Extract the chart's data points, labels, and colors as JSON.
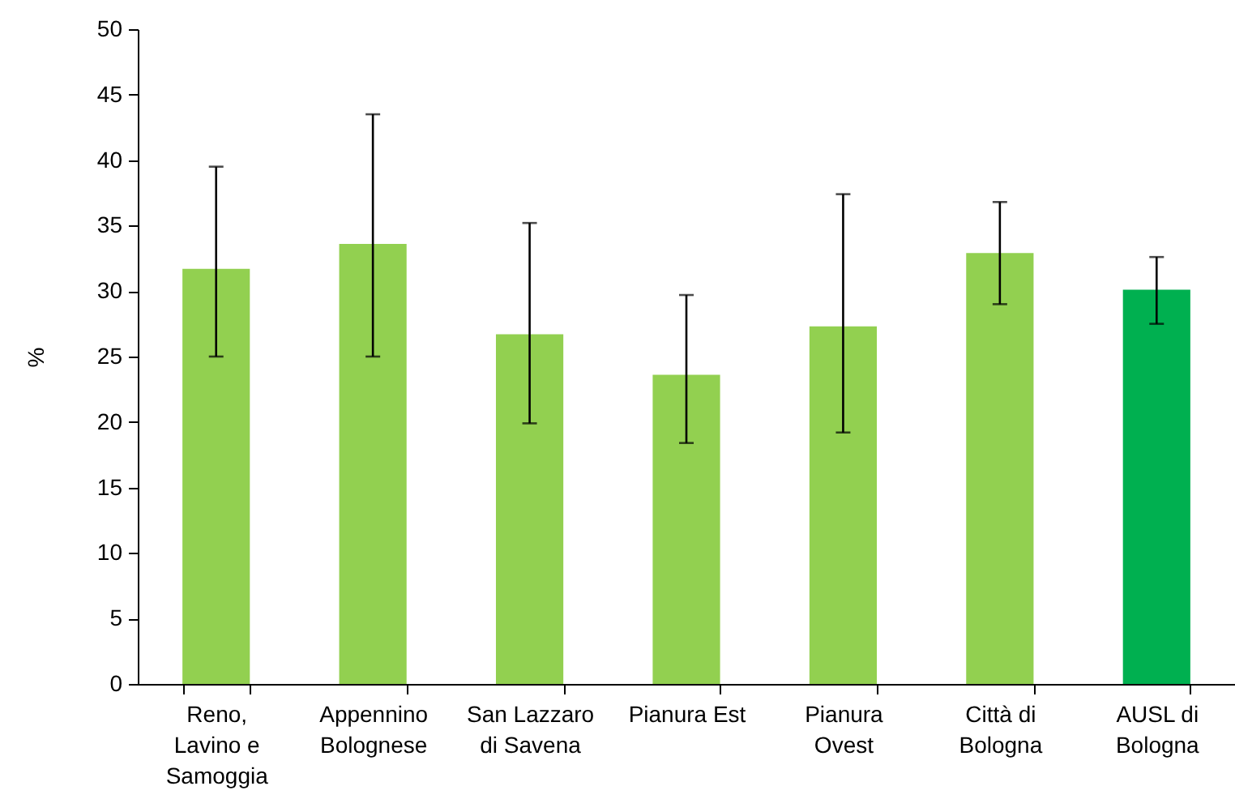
{
  "chart_data": {
    "type": "bar",
    "ylabel": "%",
    "categories": [
      "Reno, Lavino e Samoggia",
      "Appennino Bolognese",
      "San Lazzaro di Savena",
      "Pianura Est",
      "Pianura Ovest",
      "Città di Bologna",
      "AUSL di Bologna"
    ],
    "values": [
      31.7,
      33.6,
      26.7,
      23.6,
      27.3,
      32.9,
      30.1
    ],
    "colors": [
      "#92d050",
      "#92d050",
      "#92d050",
      "#92d050",
      "#92d050",
      "#92d050",
      "#00b050"
    ],
    "errors": [
      [
        25.0,
        39.5
      ],
      [
        25.0,
        43.5
      ],
      [
        19.9,
        35.2
      ],
      [
        18.4,
        29.7
      ],
      [
        19.2,
        37.4
      ],
      [
        29.0,
        36.8
      ],
      [
        27.5,
        32.6
      ]
    ],
    "ylim": [
      0,
      50
    ],
    "yticks": [
      0,
      5,
      10,
      15,
      20,
      25,
      30,
      35,
      40,
      45,
      50
    ]
  }
}
